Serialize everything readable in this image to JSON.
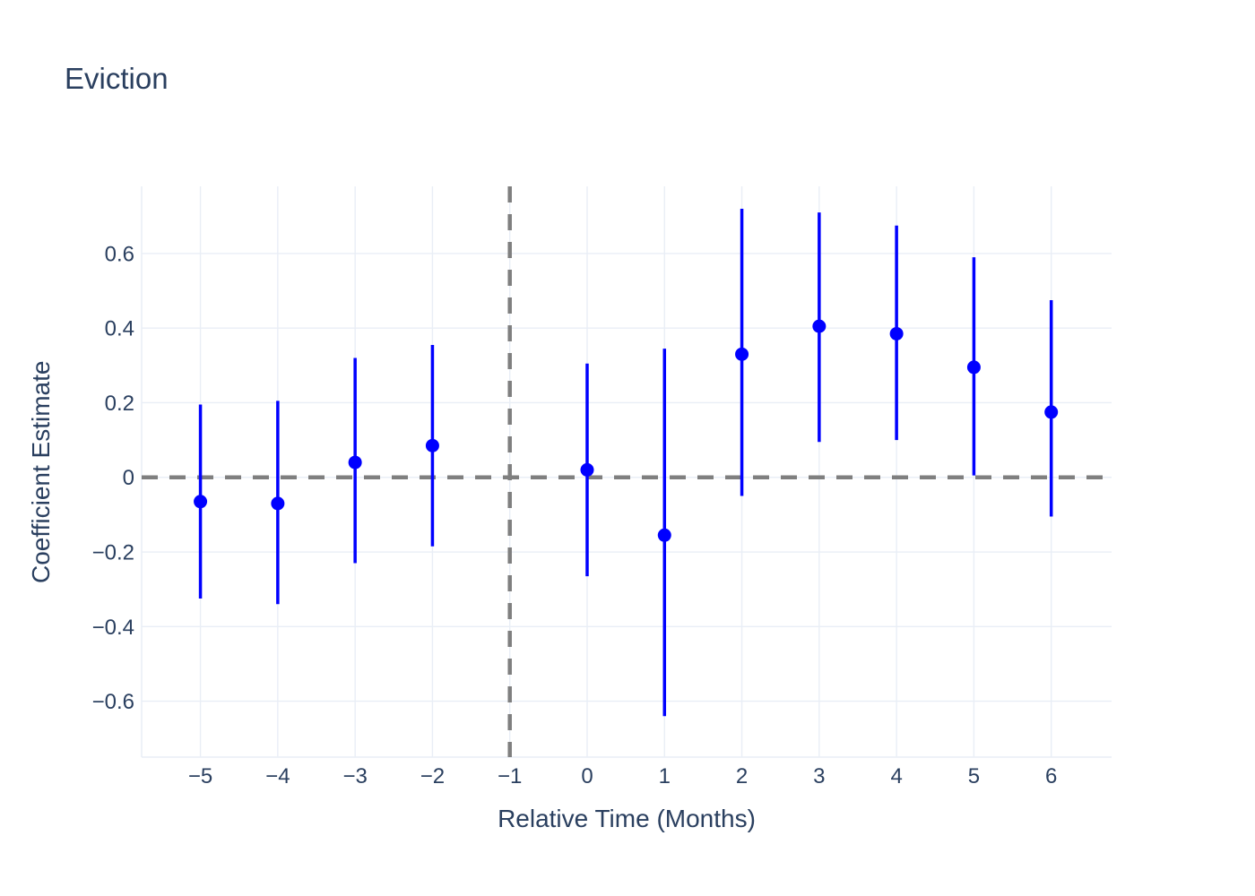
{
  "title": {
    "text": "Eviction"
  },
  "colors": {
    "text": "#2a3f5f",
    "grid": "#e9eef6",
    "axis_line": "#e9eef6",
    "marker": "#0000ff",
    "dashed_line": "#7f7f7f",
    "background": "#ffffff"
  },
  "chart_data": {
    "type": "scatter",
    "title": "Eviction",
    "xlabel": "Relative Time (Months)",
    "ylabel": "Coefficient Estimate",
    "xlim": [
      -5.76,
      6.78
    ],
    "ylim": [
      -0.75,
      0.78
    ],
    "grid": true,
    "legend": "none",
    "x_ticks": {
      "values": [
        -5,
        -4,
        -3,
        -2,
        -1,
        0,
        1,
        2,
        3,
        4,
        5,
        6
      ],
      "labels": [
        "−5",
        "−4",
        "−3",
        "−2",
        "−1",
        "0",
        "1",
        "2",
        "3",
        "4",
        "5",
        "6"
      ]
    },
    "y_ticks": {
      "values": [
        0.6,
        0.4,
        0.2,
        0,
        -0.2,
        -0.4,
        -0.6
      ],
      "labels": [
        "0.6",
        "0.4",
        "0.2",
        "0",
        "−0.2",
        "−0.4",
        "−0.6"
      ]
    },
    "reference_lines": {
      "vline_x": -1,
      "hline_y": 0,
      "color": "#7f7f7f",
      "dash": [
        18,
        13
      ],
      "width": 4.5
    },
    "style": {
      "marker_radius": 7.5,
      "error_bar_width": 3.5,
      "grid_width": 1.4
    },
    "series": [
      {
        "name": "coefficient-estimate",
        "color": "#0000ff",
        "points": [
          {
            "x": -5,
            "estimate": -0.065,
            "ci_low": -0.325,
            "ci_high": 0.195
          },
          {
            "x": -4,
            "estimate": -0.07,
            "ci_low": -0.34,
            "ci_high": 0.205
          },
          {
            "x": -3,
            "estimate": 0.04,
            "ci_low": -0.23,
            "ci_high": 0.32
          },
          {
            "x": -2,
            "estimate": 0.085,
            "ci_low": -0.185,
            "ci_high": 0.355
          },
          {
            "x": 0,
            "estimate": 0.02,
            "ci_low": -0.265,
            "ci_high": 0.305
          },
          {
            "x": 1,
            "estimate": -0.155,
            "ci_low": -0.64,
            "ci_high": 0.345
          },
          {
            "x": 2,
            "estimate": 0.33,
            "ci_low": -0.05,
            "ci_high": 0.72
          },
          {
            "x": 3,
            "estimate": 0.405,
            "ci_low": 0.095,
            "ci_high": 0.71
          },
          {
            "x": 4,
            "estimate": 0.385,
            "ci_low": 0.1,
            "ci_high": 0.675
          },
          {
            "x": 5,
            "estimate": 0.295,
            "ci_low": 0.005,
            "ci_high": 0.59
          },
          {
            "x": 6,
            "estimate": 0.175,
            "ci_low": -0.105,
            "ci_high": 0.475
          }
        ]
      }
    ]
  }
}
